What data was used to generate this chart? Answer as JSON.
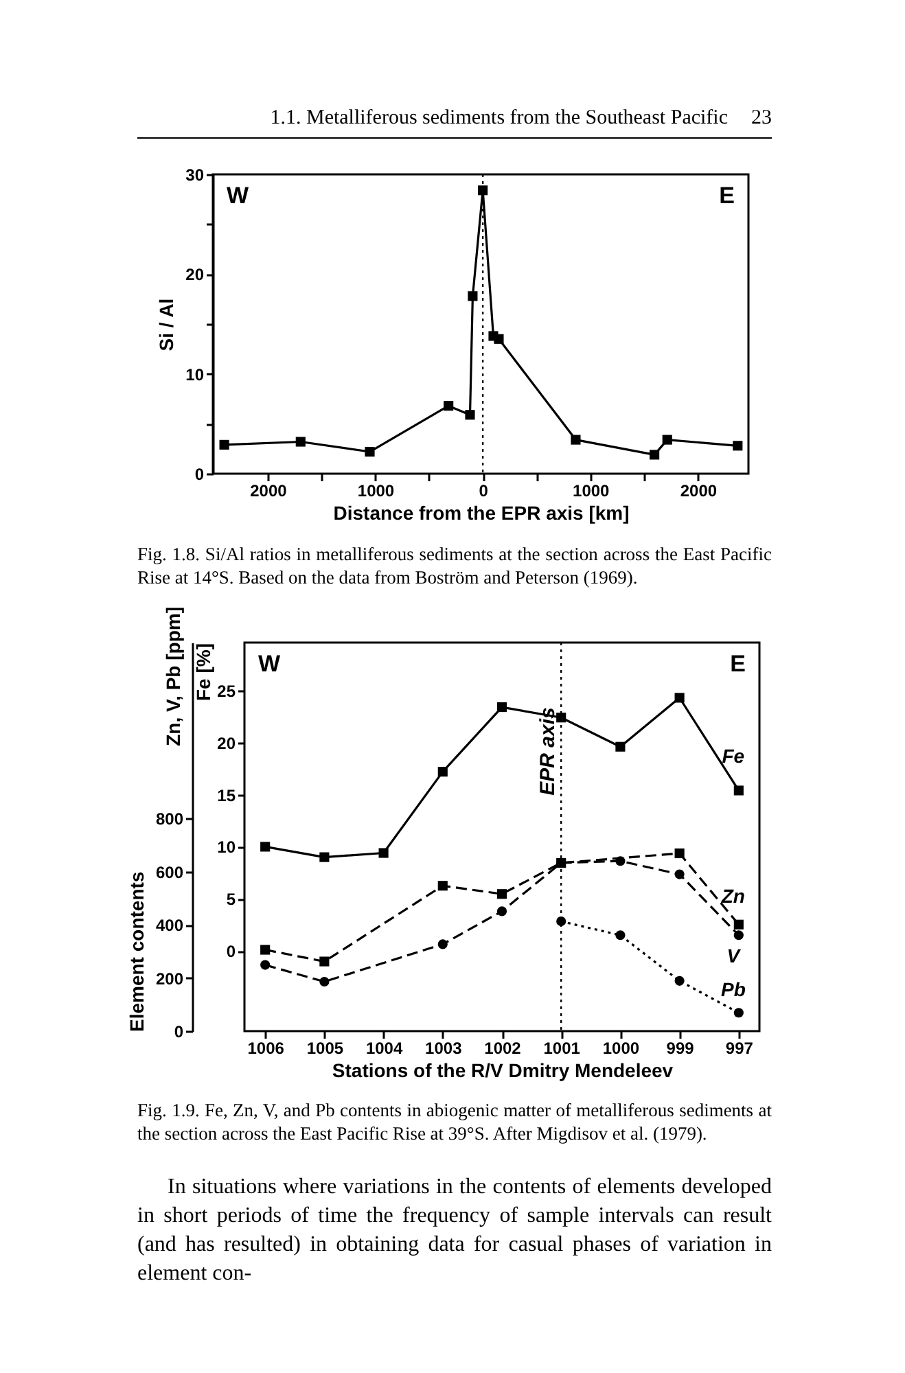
{
  "chart_data": [
    {
      "type": "line",
      "xlabel": "Distance from the EPR axis [km]",
      "ylabel": "Si / Al",
      "x": [
        -2404,
        -1694,
        -1051,
        -319,
        -119,
        -94,
        0,
        98,
        149,
        864,
        1596,
        1715,
        2370
      ],
      "series": [
        {
          "color": "#000000",
          "values": [
            2.9,
            3.2,
            2.2,
            6.8,
            5.9,
            17.8,
            28.4,
            13.8,
            13.5,
            3.4,
            1.9,
            3.4,
            2.8
          ]
        }
      ],
      "xlim": [
        -2510,
        2470
      ],
      "xticks": [
        {
          "value": -2000,
          "label": "2000"
        },
        {
          "value": -1500,
          "label": null
        },
        {
          "value": -1000,
          "label": "1000"
        },
        {
          "value": -500,
          "label": null
        },
        0,
        {
          "value": 500,
          "label": null
        },
        1000,
        {
          "value": 1500,
          "label": null
        },
        2000
      ],
      "ylim": [
        0,
        30
      ],
      "yticks": [
        0,
        {
          "value": 5,
          "label": null
        },
        10,
        {
          "value": 15,
          "label": null
        },
        20,
        {
          "value": 25,
          "label": null
        },
        30
      ],
      "ref_lines": [
        {
          "axis": "x",
          "value": 0,
          "line_style": "dotted"
        }
      ],
      "marker": "square",
      "line_style": "solid",
      "grid": false,
      "legend": false,
      "annotations": [
        "1.1. Metalliferous sediments from the Southeast Pacific",
        "23",
        "W",
        "E",
        "Fig. 1.8. Si/Al ratios in metalliferous sediments at the section across the East Pacific Rise at 14°S. Based on the data from Boström and Peterson (1969)."
      ]
    },
    {
      "type": "line",
      "xlabel": "Stations of the R/V Dmitry Mendeleev",
      "ylabel": "Element contents",
      "y2label": "Fe [%]",
      "categories": [
        "1006",
        "1005",
        "1004",
        "1003",
        "1002",
        "1001",
        "1000",
        "999",
        "997"
      ],
      "series": [
        {
          "name": "Fe",
          "color": "#000000",
          "axis": "y2",
          "marker": "square",
          "line_style": "solid",
          "values": [
            10.0,
            9.0,
            9.4,
            17.2,
            23.4,
            22.4,
            19.6,
            24.3,
            15.4
          ]
        },
        {
          "name": "Zn",
          "color": "#000000",
          "marker": "square",
          "line_style": "dashed",
          "values": [
            306,
            262,
            null,
            547,
            516,
            633,
            null,
            669,
            401
          ]
        },
        {
          "name": "V",
          "color": "#000000",
          "marker": "circle",
          "line_style": "dashed",
          "values": [
            249,
            186,
            null,
            327,
            451,
            633,
            640,
            590,
            361
          ]
        },
        {
          "name": "Pb",
          "color": "#000000",
          "marker": "circle",
          "line_style": "dotted",
          "values": [
            null,
            null,
            null,
            null,
            null,
            413,
            361,
            189,
            69
          ]
        }
      ],
      "ylim": [
        0,
        1462
      ],
      "yticks": [
        0,
        200,
        400,
        600,
        800
      ],
      "y2lim": [
        -7.7,
        29.6
      ],
      "y2ticks": [
        0,
        5,
        10,
        15,
        20,
        25
      ],
      "ref_lines": [
        {
          "axis": "x",
          "value": "1001",
          "label": "EPR axis",
          "line_style": "dotted"
        }
      ],
      "grid": false,
      "legend": false,
      "annotations": [
        "W",
        "E",
        "Zn, V, Pb [ppm]",
        "Fig. 1.9. Fe, Zn, V, and Pb contents in abiogenic matter of metalliferous sediments at the section across the East Pacific Rise at 39°S. After Migdisov et al. (1979).",
        "In situations where variations in the contents of elements developed in short periods of time the frequency of sample intervals can result (and has resulted) in obtaining data for casual phases of variation in element con-"
      ]
    }
  ]
}
